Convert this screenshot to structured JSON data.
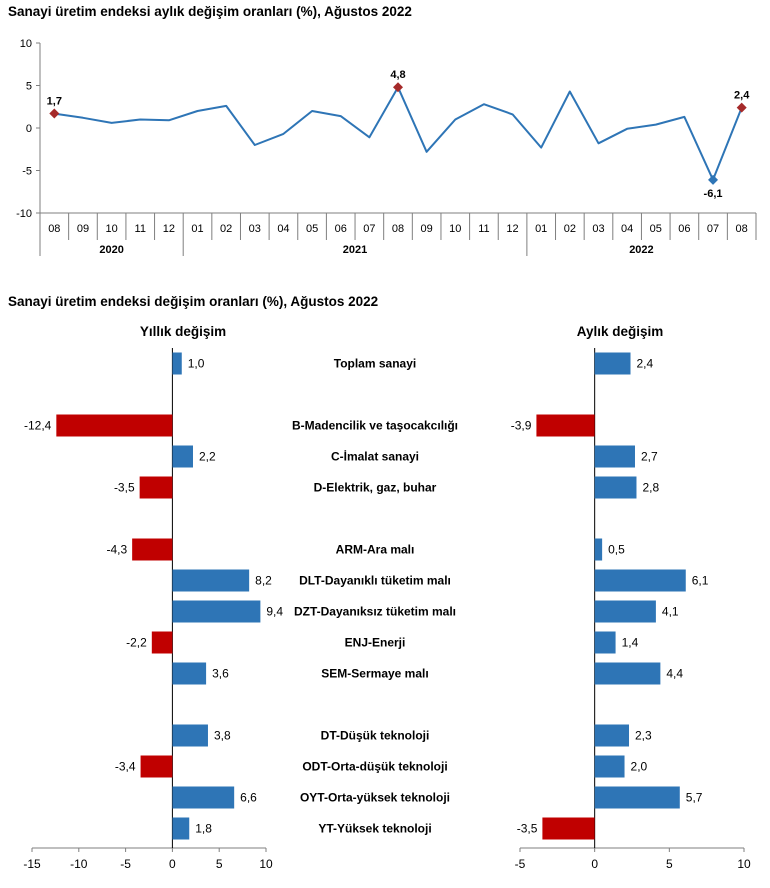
{
  "colors": {
    "line": "#2e75b6",
    "bar_pos": "#2e75b6",
    "bar_neg": "#c00000",
    "marker_hi": "#a52a2a",
    "marker_lo": "#2e75b6",
    "grid": "#7f7f7f"
  },
  "chart_data": [
    {
      "type": "line",
      "title": "Sanayi üretim endeksi aylık değişim oranları (%), Ağustos 2022",
      "ylim": [
        -10,
        10
      ],
      "yticks": [
        "10",
        "5",
        "0",
        "-5",
        "-10"
      ],
      "x": [
        "08",
        "09",
        "10",
        "11",
        "12",
        "01",
        "02",
        "03",
        "04",
        "05",
        "06",
        "07",
        "08",
        "09",
        "10",
        "11",
        "12",
        "01",
        "02",
        "03",
        "04",
        "05",
        "06",
        "07",
        "08"
      ],
      "years": [
        {
          "label": "2020",
          "start": 0,
          "end": 4
        },
        {
          "label": "2021",
          "start": 5,
          "end": 16
        },
        {
          "label": "2022",
          "start": 17,
          "end": 24
        }
      ],
      "series": [
        {
          "values": [
            1.7,
            1.2,
            0.6,
            1.0,
            0.9,
            2.0,
            2.6,
            -2.0,
            -0.7,
            2.0,
            1.4,
            -1.1,
            4.8,
            -2.8,
            1.0,
            2.8,
            1.6,
            -2.3,
            4.3,
            -1.8,
            -0.1,
            0.4,
            1.3,
            -6.1,
            2.4
          ]
        }
      ],
      "labeled_points": [
        {
          "index": 0,
          "label": "1,7",
          "highlight": "high"
        },
        {
          "index": 12,
          "label": "4,8",
          "highlight": "high"
        },
        {
          "index": 23,
          "label": "-6,1",
          "highlight": "low"
        },
        {
          "index": 24,
          "label": "2,4",
          "highlight": "high"
        }
      ]
    },
    {
      "type": "bar",
      "orientation": "horizontal",
      "title": "Sanayi üretim endeksi değişim oranları (%), Ağustos 2022",
      "categories": [
        {
          "label": "Toplam sanayi",
          "row": 0
        },
        {
          "label": "B-Madencilik ve taşocakcılığı",
          "row": 2
        },
        {
          "label": "C-İmalat sanayi",
          "row": 3
        },
        {
          "label": "D-Elektrik, gaz, buhar",
          "row": 4
        },
        {
          "label": "ARM-Ara malı",
          "row": 6
        },
        {
          "label": "DLT-Dayanıklı tüketim malı",
          "row": 7
        },
        {
          "label": "DZT-Dayanıksız tüketim malı",
          "row": 8
        },
        {
          "label": "ENJ-Enerji",
          "row": 9
        },
        {
          "label": "SEM-Sermaye malı",
          "row": 10
        },
        {
          "label": "DT-Düşük teknoloji",
          "row": 12
        },
        {
          "label": "ODT-Orta-düşük teknoloji",
          "row": 13
        },
        {
          "label": "OYT-Orta-yüksek teknoloji",
          "row": 14
        },
        {
          "label": "YT-Yüksek teknoloji",
          "row": 15
        }
      ],
      "panels": [
        {
          "title": "Yıllık değişim",
          "xlim": [
            -15,
            10
          ],
          "xticks": [
            "-15",
            "-10",
            "-5",
            "0",
            "5",
            "10"
          ],
          "values": [
            1.0,
            -12.4,
            2.2,
            -3.5,
            -4.3,
            8.2,
            9.4,
            -2.2,
            3.6,
            3.8,
            -3.4,
            6.6,
            1.8
          ],
          "labels": [
            "1,0",
            "-12,4",
            "2,2",
            "-3,5",
            "-4,3",
            "8,2",
            "9,4",
            "-2,2",
            "3,6",
            "3,8",
            "-3,4",
            "6,6",
            "1,8"
          ]
        },
        {
          "title": "Aylık değişim",
          "xlim": [
            -5,
            10
          ],
          "xticks": [
            "-5",
            "0",
            "5",
            "10"
          ],
          "values": [
            2.4,
            -3.9,
            2.7,
            2.8,
            0.5,
            6.1,
            4.1,
            1.4,
            4.4,
            2.3,
            2.0,
            5.7,
            -3.5
          ],
          "labels": [
            "2,4",
            "-3,9",
            "2,7",
            "2,8",
            "0,5",
            "6,1",
            "4,1",
            "1,4",
            "4,4",
            "2,3",
            "2,0",
            "5,7",
            "-3,5"
          ]
        }
      ]
    }
  ]
}
